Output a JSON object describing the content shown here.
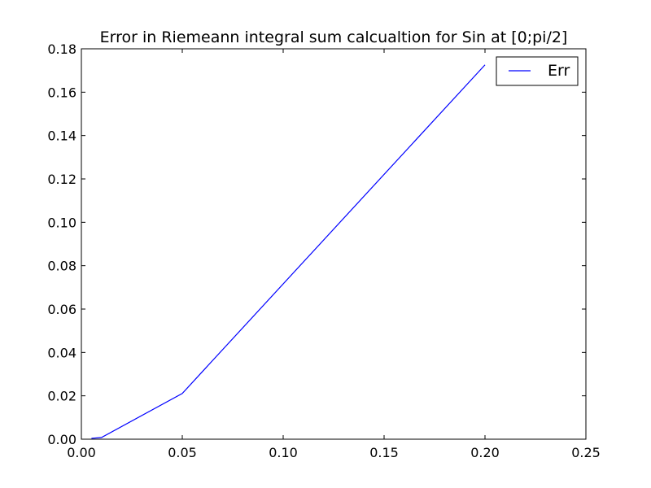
{
  "chart_data": {
    "type": "line",
    "title": "Error in Riemeann integral sum calcualtion for Sin at [0;pi/2]",
    "xlabel": "",
    "ylabel": "",
    "xlim": [
      0.0,
      0.25
    ],
    "ylim": [
      0.0,
      0.18
    ],
    "x_ticks": [
      "0.00",
      "0.05",
      "0.10",
      "0.15",
      "0.20",
      "0.25"
    ],
    "y_ticks": [
      "0.00",
      "0.02",
      "0.04",
      "0.06",
      "0.08",
      "0.10",
      "0.12",
      "0.14",
      "0.16",
      "0.18"
    ],
    "grid": false,
    "legend_position": "top-right",
    "series": [
      {
        "name": "Err",
        "color": "#0000ff",
        "x": [
          0.005,
          0.01,
          0.05,
          0.2
        ],
        "y": [
          0.0004,
          0.0008,
          0.0211,
          0.1726
        ]
      }
    ]
  }
}
